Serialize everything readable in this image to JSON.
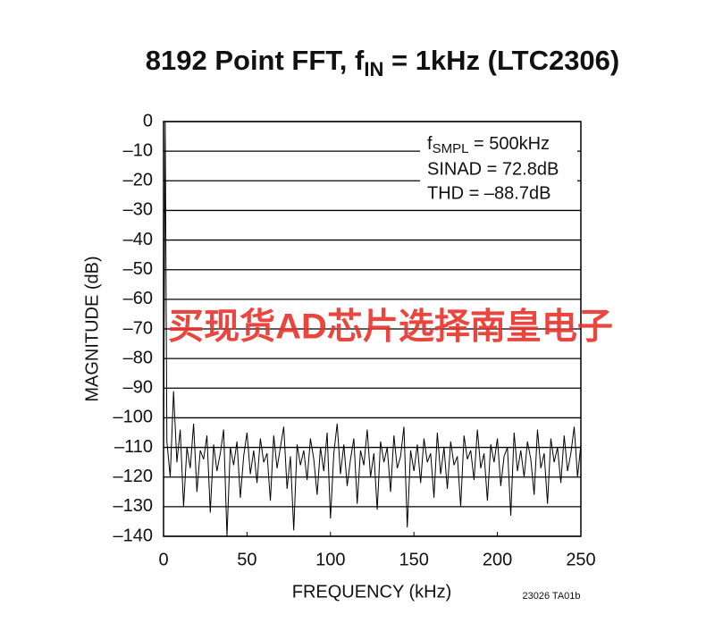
{
  "chart_data": {
    "type": "line",
    "title": [
      "8192 Point FFT, f",
      "IN",
      " = 1kHz (LTC2306)"
    ],
    "x_label": "FREQUENCY (kHz)",
    "y_label": "MAGNITUDE (dB)",
    "annotation": [
      "f",
      "SMPL",
      " = 500kHz",
      "SINAD = 72.8dB",
      "THD = –88.7dB"
    ],
    "watermark": "买现货AD芯片选择南皇电子",
    "footnote": "23026 TA01b",
    "xlim": [
      0,
      250
    ],
    "xticks": [
      0,
      50,
      100,
      150,
      200,
      250
    ],
    "ylim": [
      -140,
      0
    ],
    "yticks": [
      0,
      {
        "value": -10,
        "label": "–10"
      },
      {
        "value": -20,
        "label": "–20"
      },
      {
        "value": -30,
        "label": "–30"
      },
      {
        "value": -40,
        "label": "–40"
      },
      {
        "value": -50,
        "label": "–50"
      },
      {
        "value": -60,
        "label": "–60"
      },
      {
        "value": -70,
        "label": "–70"
      },
      {
        "value": -80,
        "label": "–80"
      },
      {
        "value": -90,
        "label": "–90"
      },
      {
        "value": -100,
        "label": "–100"
      },
      {
        "value": -110,
        "label": "–110"
      },
      {
        "value": -120,
        "label": "–120"
      },
      {
        "value": -130,
        "label": "–130"
      },
      {
        "value": -140,
        "label": "–140"
      }
    ],
    "grid": true,
    "color": "#000000",
    "x": [
      0,
      1,
      2,
      4,
      6,
      8,
      10,
      12,
      14,
      16,
      18,
      20,
      22,
      24,
      26,
      28,
      30,
      32,
      34,
      36,
      38,
      40,
      42,
      44,
      46,
      48,
      50,
      52,
      54,
      56,
      58,
      60,
      62,
      64,
      66,
      68,
      70,
      72,
      74,
      76,
      78,
      80,
      82,
      84,
      86,
      88,
      90,
      92,
      94,
      96,
      98,
      100,
      102,
      104,
      106,
      108,
      110,
      112,
      114,
      116,
      118,
      120,
      122,
      124,
      126,
      128,
      130,
      132,
      134,
      136,
      138,
      140,
      142,
      144,
      146,
      148,
      150,
      152,
      154,
      156,
      158,
      160,
      162,
      164,
      166,
      168,
      170,
      172,
      174,
      176,
      178,
      180,
      182,
      184,
      186,
      188,
      190,
      192,
      194,
      196,
      198,
      200,
      202,
      204,
      206,
      208,
      210,
      212,
      214,
      216,
      218,
      220,
      222,
      224,
      226,
      228,
      230,
      232,
      234,
      236,
      238,
      240,
      242,
      244,
      246,
      248,
      250
    ],
    "values": [
      -112,
      0,
      -108,
      -120,
      -91,
      -115,
      -104,
      -130,
      -110,
      -117,
      -102,
      -125,
      -111,
      -114,
      -106,
      -132,
      -109,
      -118,
      -112,
      -104,
      -140,
      -110,
      -116,
      -108,
      -127,
      -113,
      -105,
      -119,
      -111,
      -122,
      -107,
      -115,
      -112,
      -128,
      -106,
      -117,
      -110,
      -103,
      -124,
      -113,
      -138,
      -109,
      -116,
      -111,
      -121,
      -107,
      -114,
      -126,
      -110,
      -118,
      -105,
      -134,
      -112,
      -102,
      -119,
      -109,
      -123,
      -114,
      -107,
      -129,
      -111,
      -116,
      -104,
      -120,
      -112,
      -131,
      -108,
      -115,
      -110,
      -125,
      -106,
      -117,
      -113,
      -103,
      -137,
      -111,
      -118,
      -109,
      -122,
      -107,
      -115,
      -112,
      -127,
      -105,
      -119,
      -110,
      -124,
      -108,
      -116,
      -113,
      -130,
      -106,
      -114,
      -111,
      -121,
      -104,
      -117,
      -112,
      -128,
      -109,
      -115,
      -107,
      -123,
      -113,
      -110,
      -133,
      -105,
      -118,
      -111,
      -120,
      -108,
      -114,
      -126,
      -104,
      -117,
      -112,
      -129,
      -107,
      -115,
      -110,
      -122,
      -106,
      -118,
      -112,
      -103,
      -120,
      -109
    ]
  }
}
